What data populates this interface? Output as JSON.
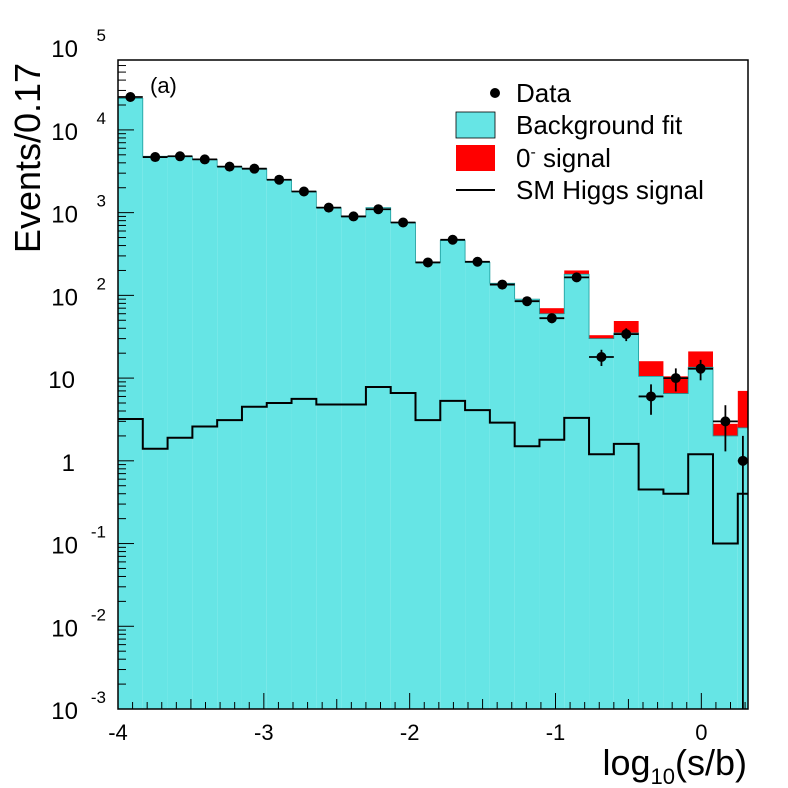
{
  "chart_data": {
    "type": "histogram",
    "panel_label": "(a)",
    "xlabel": {
      "base": "log",
      "sub": "10",
      "rest": "(s/b)"
    },
    "ylabel": "Events/0.17",
    "xlim": [
      -4,
      0.32
    ],
    "ylim": [
      0.001,
      70000
    ],
    "yscale": "log",
    "x_ticks": [
      {
        "value": -4,
        "label": "-4"
      },
      {
        "value": -3,
        "label": "-3"
      },
      {
        "value": -2,
        "label": "-2"
      },
      {
        "value": -1,
        "label": "-1"
      },
      {
        "value": 0,
        "label": "0"
      }
    ],
    "y_ticks": [
      {
        "value": 0.001,
        "base": "10",
        "exp": "-3"
      },
      {
        "value": 0.01,
        "base": "10",
        "exp": "-2"
      },
      {
        "value": 0.1,
        "base": "10",
        "exp": "-1"
      },
      {
        "value": 1,
        "base": "1",
        "exp": ""
      },
      {
        "value": 10,
        "base": "10",
        "exp": ""
      },
      {
        "value": 100,
        "base": "10",
        "exp": "2"
      },
      {
        "value": 1000,
        "base": "10",
        "exp": "3"
      },
      {
        "value": 10000,
        "base": "10",
        "exp": "4"
      },
      {
        "value": 100000,
        "base": "10",
        "exp": "5"
      }
    ],
    "legend": {
      "position": "top-right",
      "items": [
        {
          "key": "data",
          "label": "Data",
          "style": "marker"
        },
        {
          "key": "background",
          "label": "Background fit",
          "style": "fill"
        },
        {
          "key": "signal",
          "label": "0",
          "sup": "-",
          "label_rest": " signal",
          "style": "fill"
        },
        {
          "key": "sm",
          "label": "SM Higgs signal",
          "style": "line"
        }
      ]
    },
    "colors": {
      "background": "#66e5e5",
      "signal": "#ff0000",
      "data": "#000000",
      "sm": "#000000"
    },
    "bin_edges": [
      -4.0,
      -3.83,
      -3.66,
      -3.49,
      -3.32,
      -3.15,
      -2.98,
      -2.81,
      -2.64,
      -2.47,
      -2.3,
      -2.13,
      -1.96,
      -1.79,
      -1.62,
      -1.45,
      -1.28,
      -1.11,
      -0.94,
      -0.77,
      -0.6,
      -0.43,
      -0.26,
      -0.09,
      0.08,
      0.25,
      0.32
    ],
    "series": [
      {
        "name": "Background fit",
        "values": [
          24000,
          4800,
          4800,
          4400,
          3600,
          3400,
          2500,
          1800,
          1150,
          900,
          1150,
          760,
          250,
          460,
          250,
          140,
          90,
          60,
          180,
          30,
          35,
          10.5,
          6.5,
          13.5,
          2,
          2.5,
          2.5
        ]
      },
      {
        "name": "0- signal",
        "values": [
          0,
          0,
          0,
          0,
          0,
          0,
          0,
          0,
          0,
          0,
          0,
          0,
          0,
          0,
          0,
          0,
          0,
          10,
          20,
          3,
          14,
          5.5,
          4,
          7.5,
          0.8,
          4.5,
          4.5
        ]
      },
      {
        "name": "SM Higgs signal",
        "values": [
          3.2,
          1.4,
          1.9,
          2.6,
          3.1,
          4.5,
          5,
          5.6,
          4.8,
          4.8,
          7.8,
          6.6,
          3.1,
          5.3,
          4.1,
          2.9,
          1.5,
          1.8,
          3.3,
          1.2,
          1.6,
          0.45,
          0.4,
          1.2,
          0.1,
          0.4,
          0.4
        ]
      }
    ],
    "data_points": [
      {
        "x": -3.915,
        "y": 25000,
        "yerr_low": 150,
        "yerr_high": 150
      },
      {
        "x": -3.745,
        "y": 4700,
        "yerr_low": 70,
        "yerr_high": 70
      },
      {
        "x": -3.575,
        "y": 4800,
        "yerr_low": 70,
        "yerr_high": 70
      },
      {
        "x": -3.405,
        "y": 4400,
        "yerr_low": 65,
        "yerr_high": 65
      },
      {
        "x": -3.235,
        "y": 3600,
        "yerr_low": 60,
        "yerr_high": 60
      },
      {
        "x": -3.065,
        "y": 3400,
        "yerr_low": 58,
        "yerr_high": 58
      },
      {
        "x": -2.895,
        "y": 2500,
        "yerr_low": 50,
        "yerr_high": 50
      },
      {
        "x": -2.725,
        "y": 1800,
        "yerr_low": 42,
        "yerr_high": 42
      },
      {
        "x": -2.555,
        "y": 1150,
        "yerr_low": 34,
        "yerr_high": 34
      },
      {
        "x": -2.385,
        "y": 900,
        "yerr_low": 30,
        "yerr_high": 30
      },
      {
        "x": -2.215,
        "y": 1100,
        "yerr_low": 33,
        "yerr_high": 33
      },
      {
        "x": -2.045,
        "y": 760,
        "yerr_low": 28,
        "yerr_high": 28
      },
      {
        "x": -1.875,
        "y": 250,
        "yerr_low": 16,
        "yerr_high": 16
      },
      {
        "x": -1.705,
        "y": 470,
        "yerr_low": 22,
        "yerr_high": 22
      },
      {
        "x": -1.535,
        "y": 255,
        "yerr_low": 16,
        "yerr_high": 16
      },
      {
        "x": -1.365,
        "y": 135,
        "yerr_low": 12,
        "yerr_high": 12
      },
      {
        "x": -1.195,
        "y": 85,
        "yerr_low": 9,
        "yerr_high": 9
      },
      {
        "x": -1.025,
        "y": 53,
        "yerr_low": 7,
        "yerr_high": 7
      },
      {
        "x": -0.855,
        "y": 165,
        "yerr_low": 13,
        "yerr_high": 13
      },
      {
        "x": -0.685,
        "y": 18,
        "yerr_low": 4,
        "yerr_high": 4
      },
      {
        "x": -0.515,
        "y": 34,
        "yerr_low": 6,
        "yerr_high": 6
      },
      {
        "x": -0.345,
        "y": 6,
        "yerr_low": 2.4,
        "yerr_high": 2.4
      },
      {
        "x": -0.175,
        "y": 10,
        "yerr_low": 3.1,
        "yerr_high": 3.1
      },
      {
        "x": -0.005,
        "y": 13,
        "yerr_low": 3.6,
        "yerr_high": 3.6
      },
      {
        "x": 0.165,
        "y": 3,
        "yerr_low": 1.7,
        "yerr_high": 1.7
      },
      {
        "x": 0.285,
        "y": 1,
        "yerr_low": 0.999,
        "yerr_high": 1.0
      }
    ]
  }
}
